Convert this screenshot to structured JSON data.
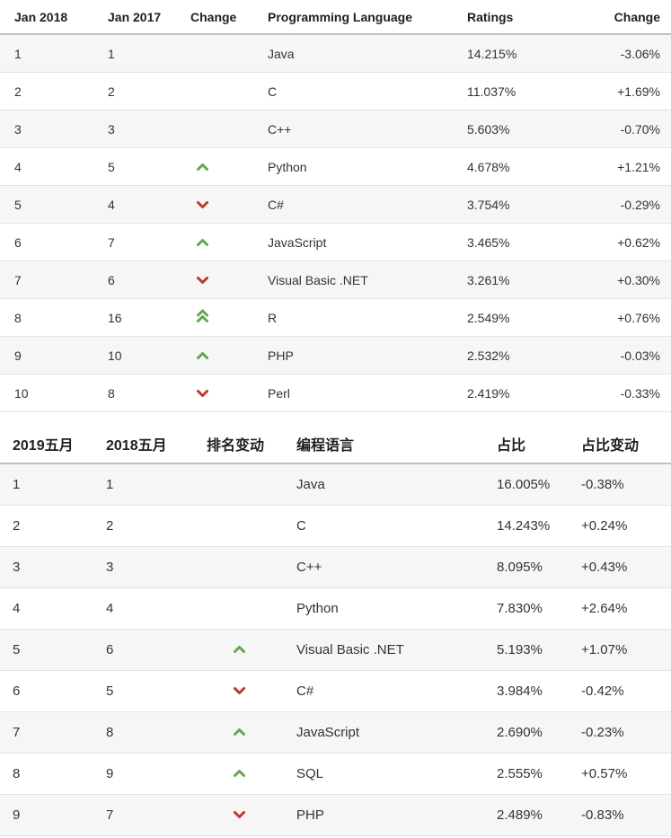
{
  "colors": {
    "up_arrow": "#62a64f",
    "down_arrow": "#c0392b",
    "alt_row_bg": "#f6f6f6",
    "row_border": "#e4e4e4",
    "header_border": "#bfbfbf",
    "text": "#333333"
  },
  "icons": {
    "up": "chevron-up",
    "down": "chevron-down",
    "up2": "double-chevron-up",
    "none": ""
  },
  "chart_data": [
    {
      "type": "table",
      "language_of_headers": "en",
      "headers": [
        "Jan 2018",
        "Jan 2017",
        "Change",
        "Programming Language",
        "Ratings",
        "Change"
      ],
      "rows": [
        {
          "rank": "1",
          "prev_rank": "1",
          "rank_change": "none",
          "language": "Java",
          "rating": "14.215%",
          "rating_change": "-3.06%"
        },
        {
          "rank": "2",
          "prev_rank": "2",
          "rank_change": "none",
          "language": "C",
          "rating": "11.037%",
          "rating_change": "+1.69%"
        },
        {
          "rank": "3",
          "prev_rank": "3",
          "rank_change": "none",
          "language": "C++",
          "rating": "5.603%",
          "rating_change": "-0.70%"
        },
        {
          "rank": "4",
          "prev_rank": "5",
          "rank_change": "up",
          "language": "Python",
          "rating": "4.678%",
          "rating_change": "+1.21%"
        },
        {
          "rank": "5",
          "prev_rank": "4",
          "rank_change": "down",
          "language": "C#",
          "rating": "3.754%",
          "rating_change": "-0.29%"
        },
        {
          "rank": "6",
          "prev_rank": "7",
          "rank_change": "up",
          "language": "JavaScript",
          "rating": "3.465%",
          "rating_change": "+0.62%"
        },
        {
          "rank": "7",
          "prev_rank": "6",
          "rank_change": "down",
          "language": "Visual Basic .NET",
          "rating": "3.261%",
          "rating_change": "+0.30%"
        },
        {
          "rank": "8",
          "prev_rank": "16",
          "rank_change": "up2",
          "language": "R",
          "rating": "2.549%",
          "rating_change": "+0.76%"
        },
        {
          "rank": "9",
          "prev_rank": "10",
          "rank_change": "up",
          "language": "PHP",
          "rating": "2.532%",
          "rating_change": "-0.03%"
        },
        {
          "rank": "10",
          "prev_rank": "8",
          "rank_change": "down",
          "language": "Perl",
          "rating": "2.419%",
          "rating_change": "-0.33%"
        }
      ]
    },
    {
      "type": "table",
      "language_of_headers": "zh",
      "headers": [
        "2019五月",
        "2018五月",
        "排名变动",
        "编程语言",
        "占比",
        "占比变动"
      ],
      "rows": [
        {
          "rank": "1",
          "prev_rank": "1",
          "rank_change": "none",
          "language": "Java",
          "rating": "16.005%",
          "rating_change": "-0.38%"
        },
        {
          "rank": "2",
          "prev_rank": "2",
          "rank_change": "none",
          "language": "C",
          "rating": "14.243%",
          "rating_change": "+0.24%"
        },
        {
          "rank": "3",
          "prev_rank": "3",
          "rank_change": "none",
          "language": "C++",
          "rating": "8.095%",
          "rating_change": "+0.43%"
        },
        {
          "rank": "4",
          "prev_rank": "4",
          "rank_change": "none",
          "language": "Python",
          "rating": "7.830%",
          "rating_change": "+2.64%"
        },
        {
          "rank": "5",
          "prev_rank": "6",
          "rank_change": "up",
          "language": "Visual Basic .NET",
          "rating": "5.193%",
          "rating_change": "+1.07%"
        },
        {
          "rank": "6",
          "prev_rank": "5",
          "rank_change": "down",
          "language": "C#",
          "rating": "3.984%",
          "rating_change": "-0.42%"
        },
        {
          "rank": "7",
          "prev_rank": "8",
          "rank_change": "up",
          "language": "JavaScript",
          "rating": "2.690%",
          "rating_change": "-0.23%"
        },
        {
          "rank": "8",
          "prev_rank": "9",
          "rank_change": "up",
          "language": "SQL",
          "rating": "2.555%",
          "rating_change": "+0.57%"
        },
        {
          "rank": "9",
          "prev_rank": "7",
          "rank_change": "down",
          "language": "PHP",
          "rating": "2.489%",
          "rating_change": "-0.83%"
        }
      ]
    }
  ]
}
